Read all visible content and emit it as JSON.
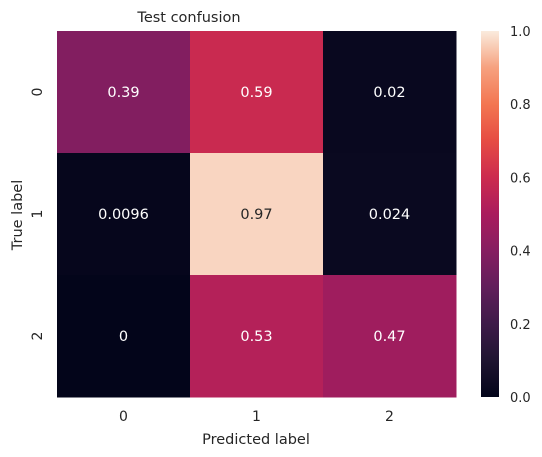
{
  "chart_data": {
    "type": "heatmap",
    "title": "Test confusion",
    "xlabel": "Predicted label",
    "ylabel": "True label",
    "x_categories": [
      "0",
      "1",
      "2"
    ],
    "y_categories": [
      "0",
      "1",
      "2"
    ],
    "values": [
      [
        0.39,
        0.59,
        0.02
      ],
      [
        0.0096,
        0.97,
        0.024
      ],
      [
        0,
        0.53,
        0.47
      ]
    ],
    "value_labels": [
      [
        "0.39",
        "0.59",
        "0.02"
      ],
      [
        "0.0096",
        "0.97",
        "0.024"
      ],
      [
        "0",
        "0.53",
        "0.47"
      ]
    ],
    "colorbar": {
      "range": [
        0.0,
        1.0
      ],
      "ticks": [
        "0.0",
        "0.2",
        "0.4",
        "0.6",
        "0.8",
        "1.0"
      ],
      "colormap": "rocket"
    },
    "grid": false,
    "legend": "colorbar-right"
  }
}
